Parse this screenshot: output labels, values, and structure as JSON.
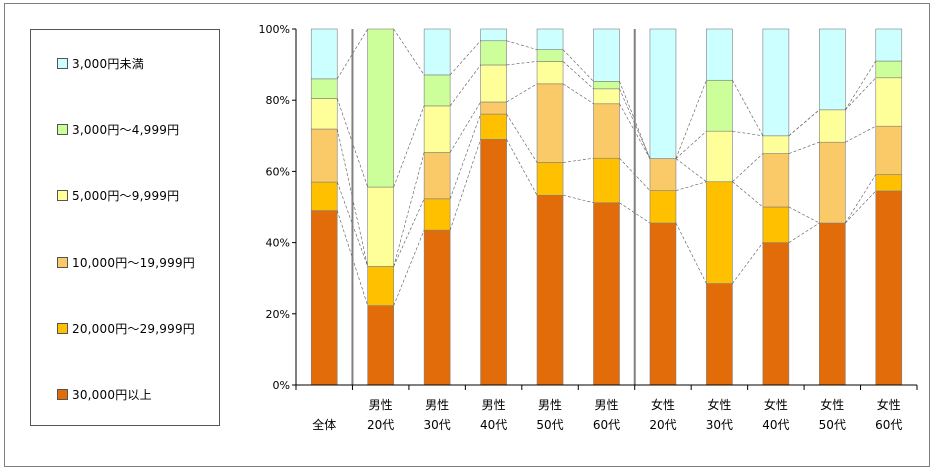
{
  "chart_data": {
    "type": "bar",
    "stacked": "percent",
    "categories": [
      [
        "全体"
      ],
      [
        "男性",
        "20代"
      ],
      [
        "男性",
        "30代"
      ],
      [
        "男性",
        "40代"
      ],
      [
        "男性",
        "50代"
      ],
      [
        "男性",
        "60代"
      ],
      [
        "女性",
        "20代"
      ],
      [
        "女性",
        "30代"
      ],
      [
        "女性",
        "40代"
      ],
      [
        "女性",
        "50代"
      ],
      [
        "女性",
        "60代"
      ]
    ],
    "series": [
      {
        "name": "30,000円以上",
        "color": "#E36C0A",
        "values": [
          49.0,
          22.3,
          43.5,
          69.0,
          53.3,
          51.2,
          45.5,
          28.5,
          40.0,
          45.5,
          54.5
        ]
      },
      {
        "name": "20,000円～29,999円",
        "color": "#FFC000",
        "values": [
          8.0,
          11.0,
          8.8,
          7.1,
          9.2,
          12.5,
          9.1,
          28.6,
          10.0,
          0.0,
          4.6
        ]
      },
      {
        "name": "10,000円～19,999円",
        "color": "#FAC968",
        "values": [
          14.9,
          0.0,
          13.0,
          3.4,
          22.1,
          15.3,
          9.0,
          0.0,
          15.0,
          22.7,
          13.6
        ]
      },
      {
        "name": "5,000円～9,999円",
        "color": "#FFFF99",
        "values": [
          8.6,
          22.3,
          13.1,
          10.4,
          6.3,
          4.2,
          0.0,
          14.2,
          5.0,
          9.1,
          13.6
        ]
      },
      {
        "name": "3,000円～4,999円",
        "color": "#CCFF99",
        "values": [
          5.5,
          44.4,
          8.7,
          6.8,
          3.3,
          2.1,
          0.0,
          14.3,
          0.0,
          0.0,
          4.7
        ]
      },
      {
        "name": "3,000円未満",
        "color": "#CCFFFF",
        "values": [
          14.0,
          0.0,
          12.9,
          3.3,
          5.8,
          14.7,
          36.4,
          14.4,
          30.0,
          22.7,
          9.0
        ]
      }
    ],
    "y_ticks": [
      "0%",
      "20%",
      "40%",
      "60%",
      "80%",
      "100%"
    ],
    "ylim": [
      0,
      100
    ],
    "grid": false,
    "legend": "left",
    "series_lines": true,
    "group_separators_after": [
      0,
      5
    ]
  }
}
